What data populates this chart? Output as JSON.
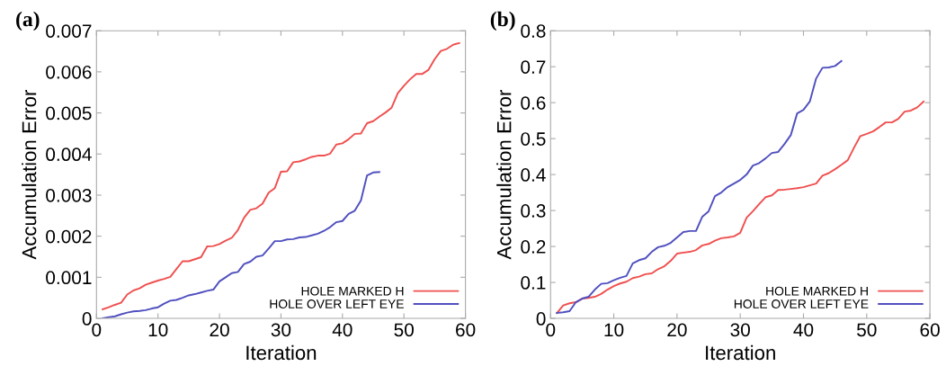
{
  "chart_data": [
    {
      "type": "line",
      "title": "(a)",
      "xlabel": "Iteration",
      "ylabel": "Accumulation Error",
      "xlim": [
        0,
        60
      ],
      "xticks": [
        0,
        10,
        20,
        30,
        40,
        50,
        60
      ],
      "ylim": [
        0,
        0.007
      ],
      "yticks": [
        0,
        0.001,
        0.002,
        0.003,
        0.004,
        0.005,
        0.006,
        0.007
      ],
      "grid": false,
      "legend": "bottom right",
      "line_style": "solid",
      "marker": "none",
      "series": [
        {
          "name": "HOLE MARKED H",
          "color": "#f05050",
          "x": [
            1,
            2,
            3,
            4,
            5,
            6,
            7,
            8,
            9,
            10,
            11,
            12,
            13,
            14,
            15,
            16,
            17,
            18,
            19,
            20,
            21,
            22,
            23,
            24,
            25,
            26,
            27,
            28,
            29,
            30,
            31,
            32,
            33,
            34,
            35,
            36,
            37,
            38,
            39,
            40,
            41,
            42,
            43,
            44,
            45,
            46,
            47,
            48,
            49,
            50,
            51,
            52,
            53,
            54,
            55,
            56,
            57,
            58,
            59
          ],
          "values": [
            0.00022,
            0.00027,
            0.00033,
            0.00038,
            0.00058,
            0.00068,
            0.00073,
            0.00082,
            0.00087,
            0.00092,
            0.00096,
            0.00101,
            0.0012,
            0.00139,
            0.00139,
            0.00144,
            0.00149,
            0.00175,
            0.00176,
            0.00181,
            0.00189,
            0.00196,
            0.00215,
            0.00245,
            0.00264,
            0.00268,
            0.00279,
            0.00306,
            0.00317,
            0.00357,
            0.00358,
            0.0038,
            0.00382,
            0.00387,
            0.00393,
            0.00396,
            0.00396,
            0.00401,
            0.00423,
            0.00426,
            0.00436,
            0.00449,
            0.0045,
            0.00475,
            0.0048,
            0.00491,
            0.00501,
            0.00513,
            0.00548,
            0.00566,
            0.00582,
            0.00595,
            0.00595,
            0.00605,
            0.00631,
            0.00651,
            0.00656,
            0.00666,
            0.0067
          ]
        },
        {
          "name": "HOLE OVER LEFT EYE",
          "color": "#5050c0",
          "x": [
            1,
            2,
            3,
            4,
            5,
            6,
            7,
            8,
            9,
            10,
            11,
            12,
            13,
            14,
            15,
            16,
            17,
            18,
            19,
            20,
            21,
            22,
            23,
            24,
            25,
            26,
            27,
            28,
            29,
            30,
            31,
            32,
            33,
            34,
            35,
            36,
            37,
            38,
            39,
            40,
            41,
            42,
            43,
            44,
            45,
            46
          ],
          "values": [
            0.0,
            3e-05,
            5e-05,
            0.0001,
            0.00014,
            0.00017,
            0.00018,
            0.0002,
            0.00024,
            0.00027,
            0.00036,
            0.00043,
            0.00045,
            0.0005,
            0.00056,
            0.00059,
            0.00063,
            0.00067,
            0.0007,
            0.0009,
            0.001,
            0.0011,
            0.00113,
            0.00132,
            0.00138,
            0.0015,
            0.00153,
            0.0017,
            0.00188,
            0.00188,
            0.00192,
            0.00193,
            0.00197,
            0.00198,
            0.00202,
            0.00206,
            0.00213,
            0.00222,
            0.00234,
            0.00237,
            0.00254,
            0.00262,
            0.00287,
            0.00348,
            0.00355,
            0.00356
          ]
        }
      ]
    },
    {
      "type": "line",
      "title": "(b)",
      "xlabel": "Iteration",
      "ylabel": "Accumulation Error",
      "xlim": [
        0,
        60
      ],
      "xticks": [
        0,
        10,
        20,
        30,
        40,
        50,
        60
      ],
      "ylim": [
        0,
        0.8
      ],
      "yticks": [
        0,
        0.1,
        0.2,
        0.3,
        0.4,
        0.5,
        0.6,
        0.7,
        0.8
      ],
      "grid": false,
      "legend": "bottom right",
      "line_style": "solid",
      "marker": "none",
      "series": [
        {
          "name": "HOLE MARKED H",
          "color": "#f05050",
          "x": [
            1,
            2,
            3,
            4,
            5,
            6,
            7,
            8,
            9,
            10,
            11,
            12,
            13,
            14,
            15,
            16,
            17,
            18,
            19,
            20,
            21,
            22,
            23,
            24,
            25,
            26,
            27,
            28,
            29,
            30,
            31,
            32,
            33,
            34,
            35,
            36,
            37,
            38,
            39,
            40,
            41,
            42,
            43,
            44,
            45,
            46,
            47,
            48,
            49,
            50,
            51,
            52,
            53,
            54,
            55,
            56,
            57,
            58,
            59
          ],
          "values": [
            0.015,
            0.036,
            0.042,
            0.045,
            0.055,
            0.057,
            0.06,
            0.068,
            0.08,
            0.09,
            0.097,
            0.102,
            0.112,
            0.116,
            0.123,
            0.125,
            0.137,
            0.145,
            0.16,
            0.18,
            0.183,
            0.185,
            0.19,
            0.203,
            0.207,
            0.216,
            0.223,
            0.225,
            0.228,
            0.238,
            0.28,
            0.298,
            0.318,
            0.337,
            0.342,
            0.357,
            0.358,
            0.36,
            0.362,
            0.365,
            0.37,
            0.375,
            0.397,
            0.404,
            0.415,
            0.427,
            0.44,
            0.475,
            0.507,
            0.513,
            0.52,
            0.532,
            0.545,
            0.545,
            0.555,
            0.575,
            0.578,
            0.587,
            0.603
          ]
        },
        {
          "name": "HOLE OVER LEFT EYE",
          "color": "#5050c0",
          "x": [
            1,
            2,
            3,
            4,
            5,
            6,
            7,
            8,
            9,
            10,
            11,
            12,
            13,
            14,
            15,
            16,
            17,
            18,
            19,
            20,
            21,
            22,
            23,
            24,
            25,
            26,
            27,
            28,
            29,
            30,
            31,
            32,
            33,
            34,
            35,
            36,
            37,
            38,
            39,
            40,
            41,
            42,
            43,
            44,
            45,
            46
          ],
          "values": [
            0.015,
            0.017,
            0.02,
            0.045,
            0.055,
            0.06,
            0.08,
            0.096,
            0.098,
            0.106,
            0.113,
            0.118,
            0.153,
            0.162,
            0.167,
            0.185,
            0.198,
            0.202,
            0.21,
            0.225,
            0.24,
            0.243,
            0.243,
            0.283,
            0.298,
            0.34,
            0.35,
            0.365,
            0.375,
            0.385,
            0.4,
            0.425,
            0.432,
            0.445,
            0.46,
            0.463,
            0.485,
            0.51,
            0.57,
            0.58,
            0.603,
            0.667,
            0.697,
            0.698,
            0.702,
            0.716
          ]
        }
      ]
    }
  ]
}
